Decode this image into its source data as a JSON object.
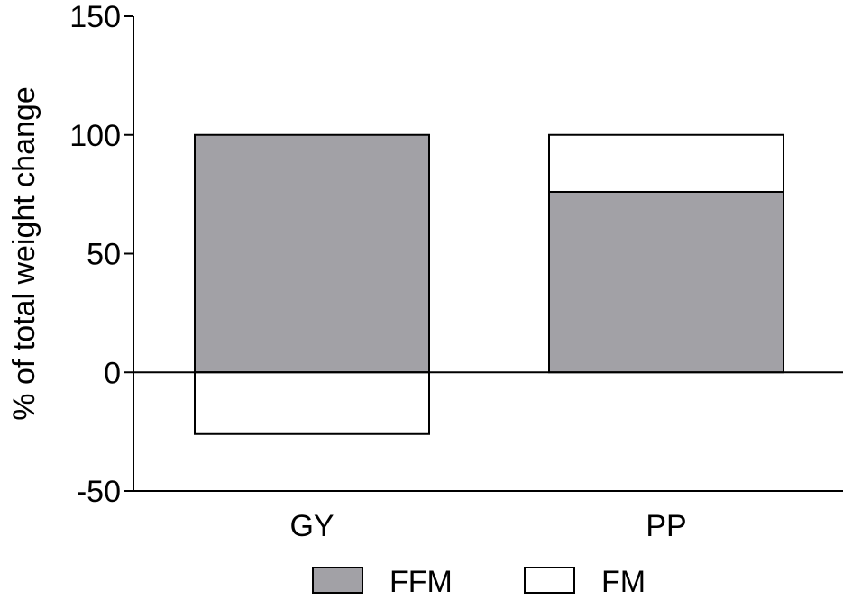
{
  "chart_data": {
    "type": "bar",
    "stacked": true,
    "title": "",
    "xlabel": "",
    "ylabel": "% of total weight change",
    "ylim": [
      -50,
      150
    ],
    "yticks": [
      -50,
      0,
      50,
      100,
      150
    ],
    "categories": [
      "GY",
      "PP"
    ],
    "series": [
      {
        "name": "FFM",
        "values": [
          100,
          76
        ],
        "color": "#a2a1a6"
      },
      {
        "name": "FM",
        "values": [
          -26,
          24
        ],
        "color": "#ffffff"
      }
    ],
    "grid": false,
    "legend_position": "bottom"
  }
}
